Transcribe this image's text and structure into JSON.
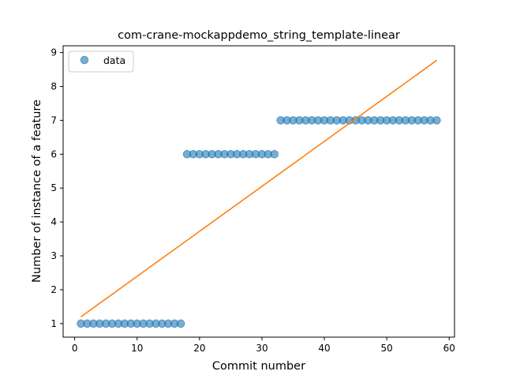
{
  "chart_data": {
    "type": "scatter",
    "title": "com-crane-mockappdemo_string_template-linear",
    "xlabel": "Commit number",
    "ylabel": "Number of instance of a feature",
    "xlim": [
      -1.85,
      60.85
    ],
    "ylim": [
      0.6,
      9.2
    ],
    "xticks": [
      0,
      10,
      20,
      30,
      40,
      50,
      60
    ],
    "yticks": [
      1,
      2,
      3,
      4,
      5,
      6,
      7,
      8,
      9
    ],
    "legend": {
      "position": "top-left",
      "entries": [
        "data"
      ]
    },
    "grid": false,
    "colors": {
      "data": "#1f77b4",
      "fit": "#ff7f0e"
    },
    "series": [
      {
        "name": "data",
        "kind": "scatter",
        "x": [
          1,
          2,
          3,
          4,
          5,
          6,
          7,
          8,
          9,
          10,
          11,
          12,
          13,
          14,
          15,
          16,
          17,
          18,
          19,
          20,
          21,
          22,
          23,
          24,
          25,
          26,
          27,
          28,
          29,
          30,
          31,
          32,
          33,
          34,
          35,
          36,
          37,
          38,
          39,
          40,
          41,
          42,
          43,
          44,
          45,
          46,
          47,
          48,
          49,
          50,
          51,
          52,
          53,
          54,
          55,
          56,
          57,
          58
        ],
        "y": [
          1,
          1,
          1,
          1,
          1,
          1,
          1,
          1,
          1,
          1,
          1,
          1,
          1,
          1,
          1,
          1,
          1,
          6,
          6,
          6,
          6,
          6,
          6,
          6,
          6,
          6,
          6,
          6,
          6,
          6,
          6,
          6,
          7,
          7,
          7,
          7,
          7,
          7,
          7,
          7,
          7,
          7,
          7,
          7,
          7,
          7,
          7,
          7,
          7,
          7,
          7,
          7,
          7,
          7,
          7,
          7,
          7,
          7
        ]
      },
      {
        "kind": "line",
        "x": [
          1,
          58
        ],
        "y": [
          1.2,
          8.77
        ]
      }
    ]
  }
}
